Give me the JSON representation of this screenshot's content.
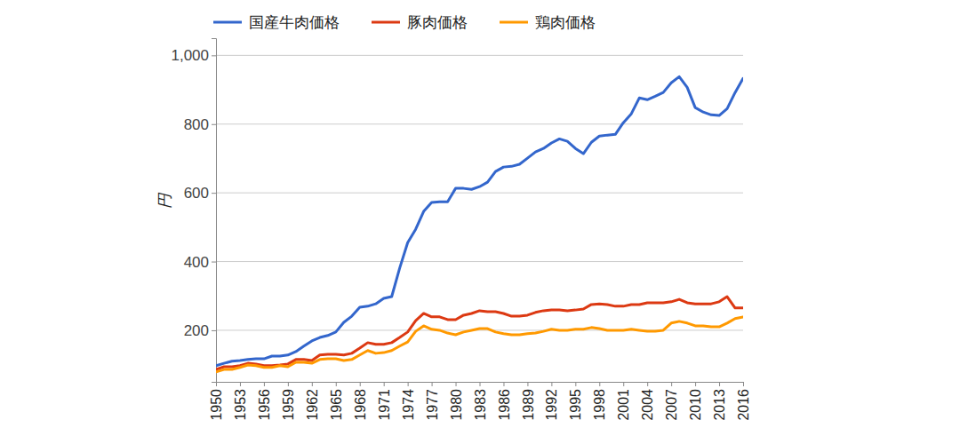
{
  "chart_data": {
    "type": "line",
    "y_label": "円",
    "legend": "top",
    "grid": true,
    "x": [
      1950,
      1951,
      1952,
      1953,
      1954,
      1955,
      1956,
      1957,
      1958,
      1959,
      1960,
      1961,
      1962,
      1963,
      1964,
      1965,
      1966,
      1967,
      1968,
      1969,
      1970,
      1971,
      1972,
      1973,
      1974,
      1975,
      1976,
      1977,
      1978,
      1979,
      1980,
      1981,
      1982,
      1983,
      1984,
      1985,
      1986,
      1987,
      1988,
      1989,
      1990,
      1991,
      1992,
      1993,
      1994,
      1995,
      1996,
      1997,
      1998,
      1999,
      2000,
      2001,
      2002,
      2003,
      2004,
      2005,
      2006,
      2007,
      2008,
      2009,
      2010,
      2011,
      2012,
      2013,
      2014,
      2015,
      2016
    ],
    "xlim": [
      1950,
      2016
    ],
    "xticks": [
      1950,
      1953,
      1956,
      1959,
      1962,
      1965,
      1968,
      1971,
      1974,
      1977,
      1980,
      1983,
      1986,
      1989,
      1992,
      1995,
      1998,
      2001,
      2004,
      2007,
      2010,
      2013,
      2016
    ],
    "ylim": [
      50,
      1050
    ],
    "yticks": [
      200,
      400,
      600,
      800,
      {
        "value": 1000,
        "label": "1,000"
      }
    ],
    "series": [
      {
        "name": "国産牛肉価格",
        "color": "#3366cc",
        "values": [
          97,
          104,
          110,
          112,
          115,
          117,
          117,
          125,
          125,
          128,
          138,
          154,
          169,
          179,
          185,
          195,
          223,
          241,
          267,
          270,
          277,
          293,
          298,
          381,
          455,
          494,
          546,
          572,
          574,
          574,
          613,
          613,
          610,
          618,
          631,
          662,
          675,
          677,
          683,
          701,
          719,
          729,
          745,
          757,
          750,
          729,
          714,
          747,
          765,
          768,
          770,
          804,
          830,
          876,
          871,
          881,
          892,
          920,
          938,
          907,
          848,
          835,
          827,
          825,
          845,
          892,
          933
        ]
      },
      {
        "name": "豚肉価格",
        "color": "#dc3912",
        "values": [
          86,
          94,
          94,
          97,
          104,
          102,
          97,
          97,
          99,
          102,
          115,
          115,
          112,
          128,
          130,
          130,
          128,
          133,
          148,
          164,
          159,
          159,
          164,
          179,
          195,
          228,
          249,
          239,
          239,
          231,
          231,
          244,
          249,
          257,
          254,
          254,
          249,
          241,
          241,
          244,
          252,
          257,
          259,
          259,
          257,
          259,
          262,
          275,
          277,
          275,
          270,
          270,
          275,
          275,
          280,
          280,
          280,
          283,
          290,
          280,
          277,
          277,
          277,
          283,
          298,
          265,
          265
        ]
      },
      {
        "name": "鶏肉価格",
        "color": "#ff9900",
        "values": [
          79,
          86,
          86,
          92,
          99,
          97,
          92,
          92,
          97,
          94,
          107,
          107,
          104,
          115,
          117,
          117,
          112,
          115,
          128,
          141,
          133,
          135,
          141,
          154,
          166,
          197,
          213,
          203,
          200,
          192,
          187,
          195,
          200,
          205,
          205,
          195,
          190,
          187,
          187,
          190,
          192,
          197,
          203,
          200,
          200,
          203,
          203,
          208,
          205,
          200,
          200,
          200,
          203,
          200,
          197,
          197,
          200,
          221,
          226,
          221,
          213,
          213,
          210,
          210,
          221,
          234,
          239
        ]
      }
    ]
  }
}
